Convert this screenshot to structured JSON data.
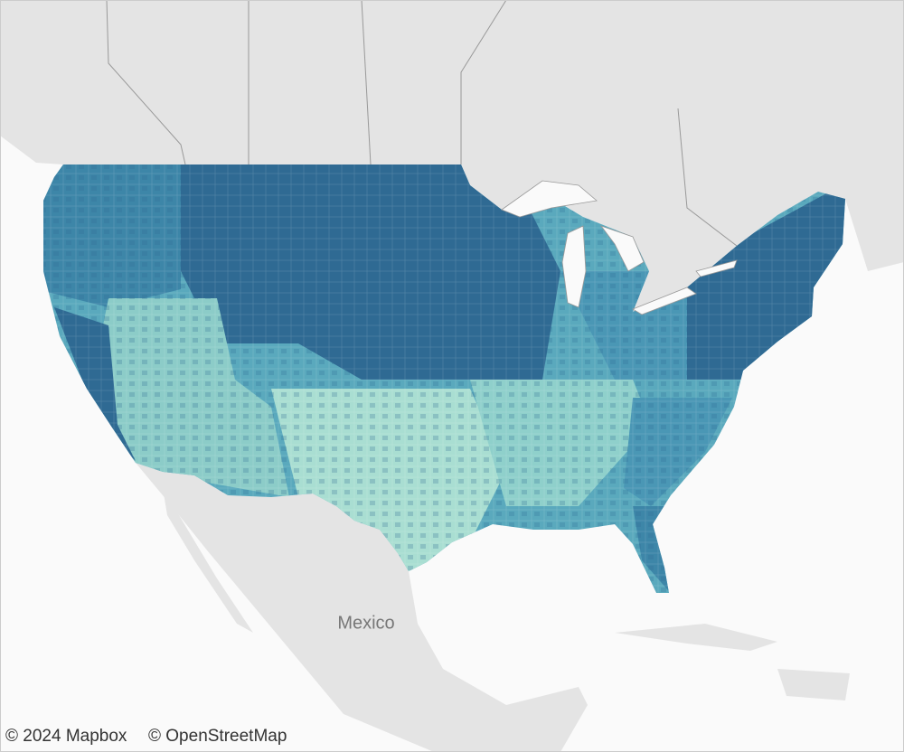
{
  "map": {
    "place_labels": [
      "Mexico"
    ]
  },
  "attribution": [
    "© 2024 Mapbox",
    "© OpenStreetMap"
  ]
}
